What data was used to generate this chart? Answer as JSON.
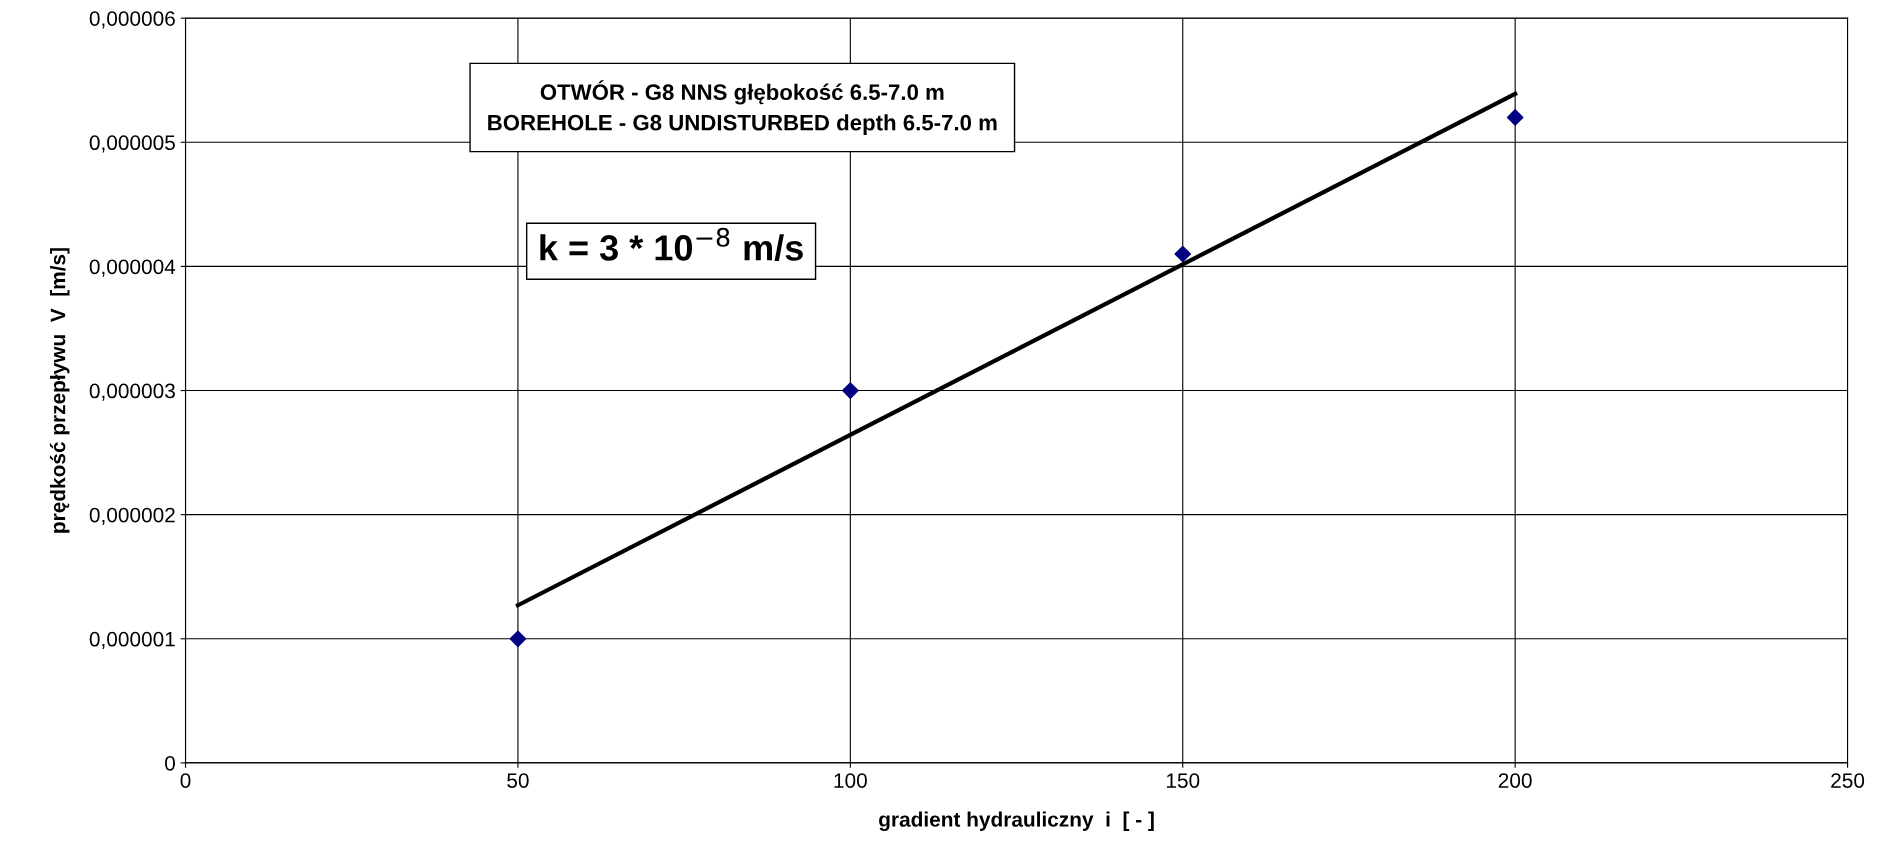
{
  "chart_data": {
    "type": "scatter",
    "xlabel": "gradient hydrauliczny  i  [ - ]",
    "ylabel": "prędkość przepływu  V  [m/s]",
    "annotations": [
      "OTWÓR - G8 NNS głębokość 6.5-7.0 m\nBOREHOLE - G8 UNDISTURBED depth 6.5-7.0 m",
      "k = 3 * 10$^{−8}$ m/s"
    ],
    "series": [
      {
        "color": "#000080",
        "marker": "diamond",
        "x": [
          50,
          100,
          150,
          200
        ],
        "values": [
          1e-06,
          3e-06,
          4.1e-06,
          5.2e-06
        ]
      },
      {
        "type": "line",
        "color": "#000000",
        "marker": "none",
        "line_style": "solid",
        "x": [
          50,
          200
        ],
        "values": [
          1.27e-06,
          5.39e-06
        ]
      }
    ],
    "xlim": [
      0,
      250
    ],
    "xticks": [
      0,
      50,
      100,
      150,
      200,
      250
    ],
    "ylim": [
      0,
      6e-06
    ],
    "yticks": [
      0,
      {
        "value": 1e-06,
        "label": "0,000001"
      },
      {
        "value": 2e-06,
        "label": "0,000002"
      },
      {
        "value": 3e-06,
        "label": "0,000003"
      },
      {
        "value": 4e-06,
        "label": "0,000004"
      },
      {
        "value": 5e-06,
        "label": "0,000005"
      },
      {
        "value": 6e-06,
        "label": "0,000006"
      }
    ],
    "grid": true
  }
}
